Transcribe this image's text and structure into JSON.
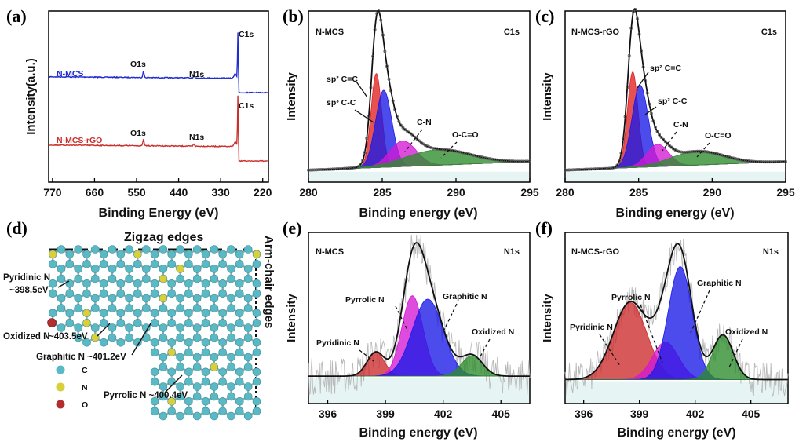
{
  "panels": {
    "a": {
      "label": "(a)",
      "ylabel": "Intensity(a.u.)",
      "xlabel": "Binding Energy (eV)",
      "xticks": [
        770,
        660,
        550,
        440,
        330,
        220
      ],
      "peak_labels": [
        "O1s",
        "N1s",
        "C1s"
      ],
      "series": [
        {
          "name": "N-MCS",
          "color": "#1f2ccf",
          "baseline": 100,
          "peaks": [
            [
              532,
              8
            ],
            [
              400,
              3
            ],
            [
              285,
              58
            ]
          ]
        },
        {
          "name": "N-MCS-rGO",
          "color": "#c9302c",
          "baseline": 187,
          "peaks": [
            [
              532,
              8
            ],
            [
              400,
              3
            ],
            [
              285,
              65
            ]
          ]
        }
      ]
    },
    "b": {
      "label": "(b)",
      "sample": "N-MCS",
      "region": "C1s",
      "ylabel": "Intensity",
      "xlabel": "Binding energy (eV)",
      "xticks": [
        280,
        285,
        290,
        295
      ],
      "components": [
        "sp² C=C",
        "sp³ C-C",
        "C-N",
        "O-C=O"
      ]
    },
    "c": {
      "label": "(c)",
      "sample": "N-MCS-rGO",
      "region": "C1s",
      "ylabel": "Intensity",
      "xlabel": "Binding energy (eV)",
      "xticks": [
        280,
        285,
        290,
        295
      ],
      "components": [
        "sp² C=C",
        "sp³ C-C",
        "C-N",
        "O-C=O"
      ]
    },
    "d": {
      "label": "(d)",
      "top_caption": "Zigzag edges",
      "side_caption": "Arm-chair edges",
      "notes": [
        "Pyridinic N",
        "~398.5eV",
        "Oxidized N",
        "~403.5eV",
        "Graphitic N ~401.2eV",
        "Pyrrolic N ~400.4eV"
      ],
      "legend": [
        {
          "name": "C",
          "color": "#59b9c4"
        },
        {
          "name": "N",
          "color": "#d8cf3a"
        },
        {
          "name": "O",
          "color": "#b32e2e"
        }
      ]
    },
    "e": {
      "label": "(e)",
      "sample": "N-MCS",
      "region": "N1s",
      "ylabel": "Intensity",
      "xlabel": "Binding energy (eV)",
      "xticks": [
        396,
        399,
        402,
        405
      ],
      "components": [
        "Pyridinic N",
        "Pyrrolic N",
        "Graphitic N",
        "Oxidized N"
      ]
    },
    "f": {
      "label": "(f)",
      "sample": "N-MCS-rGO",
      "region": "N1s",
      "ylabel": "Intensity",
      "xlabel": "Binding energy (eV)",
      "xticks": [
        396,
        399,
        402,
        405
      ],
      "components": [
        "Pyridinic N",
        "Pyrrolic N",
        "Graphitic N",
        "Oxidized N"
      ]
    }
  },
  "chart_data": [
    {
      "type": "line",
      "panel": "a",
      "xlabel": "Binding Energy (eV)",
      "ylabel": "Intensity(a.u.)",
      "xlim": [
        780,
        205
      ],
      "series": [
        {
          "name": "N-MCS",
          "peaks_eV": [
            532,
            400,
            285
          ],
          "peak_labels": [
            "O1s",
            "N1s",
            "C1s"
          ]
        },
        {
          "name": "N-MCS-rGO",
          "peaks_eV": [
            532,
            400,
            285
          ],
          "peak_labels": [
            "O1s",
            "N1s",
            "C1s"
          ]
        }
      ]
    },
    {
      "type": "area",
      "panel": "b",
      "xlabel": "Binding energy (eV)",
      "ylabel": "Intensity",
      "xlim": [
        280,
        295
      ],
      "components": [
        {
          "name": "sp² C=C",
          "center": 284.6,
          "sigma": 0.36,
          "amp": 0.55,
          "color": "#e02020"
        },
        {
          "name": "sp³ C-C",
          "center": 285.1,
          "sigma": 0.55,
          "amp": 0.45,
          "color": "#1a1ae8"
        },
        {
          "name": "C-N",
          "center": 286.4,
          "sigma": 0.9,
          "amp": 0.15,
          "color": "#d419d4"
        },
        {
          "name": "O-C=O",
          "center": 288.8,
          "sigma": 2.2,
          "amp": 0.09,
          "color": "#2c8c2c"
        }
      ]
    },
    {
      "type": "area",
      "panel": "c",
      "xlabel": "Binding energy (eV)",
      "ylabel": "Intensity",
      "xlim": [
        280,
        295
      ],
      "components": [
        {
          "name": "sp² C=C",
          "center": 284.6,
          "sigma": 0.36,
          "amp": 0.56,
          "color": "#e02020"
        },
        {
          "name": "sp³ C-C",
          "center": 285.1,
          "sigma": 0.55,
          "amp": 0.48,
          "color": "#1a1ae8"
        },
        {
          "name": "C-N",
          "center": 286.3,
          "sigma": 0.75,
          "amp": 0.13,
          "color": "#d419d4"
        },
        {
          "name": "O-C=O",
          "center": 289.0,
          "sigma": 1.8,
          "amp": 0.08,
          "color": "#2c8c2c"
        }
      ]
    },
    {
      "type": "area",
      "panel": "e",
      "xlabel": "Binding energy (eV)",
      "ylabel": "Intensity",
      "xlim": [
        395,
        406.5
      ],
      "components": [
        {
          "name": "Pyridinic N",
          "center": 398.5,
          "sigma": 0.45,
          "amp": 0.14,
          "color": "#cc2a2a"
        },
        {
          "name": "Pyrrolic N",
          "center": 400.4,
          "sigma": 0.55,
          "amp": 0.47,
          "color": "#d419d4"
        },
        {
          "name": "Graphitic N",
          "center": 401.2,
          "sigma": 0.8,
          "amp": 0.45,
          "color": "#1a1ae8"
        },
        {
          "name": "Oxidized N",
          "center": 403.5,
          "sigma": 0.55,
          "amp": 0.12,
          "color": "#2c8c2c"
        }
      ]
    },
    {
      "type": "area",
      "panel": "f",
      "xlabel": "Binding energy (eV)",
      "ylabel": "Intensity",
      "xlim": [
        395,
        407
      ],
      "components": [
        {
          "name": "Pyridinic N",
          "center": 398.5,
          "sigma": 0.9,
          "amp": 0.45,
          "color": "#cc2a2a"
        },
        {
          "name": "Pyrrolic N",
          "center": 400.4,
          "sigma": 0.7,
          "amp": 0.22,
          "color": "#d419d4"
        },
        {
          "name": "Graphitic N",
          "center": 401.2,
          "sigma": 0.65,
          "amp": 0.66,
          "color": "#1a1ae8"
        },
        {
          "name": "Oxidized N",
          "center": 403.5,
          "sigma": 0.55,
          "amp": 0.26,
          "color": "#2c8c2c"
        }
      ]
    }
  ]
}
